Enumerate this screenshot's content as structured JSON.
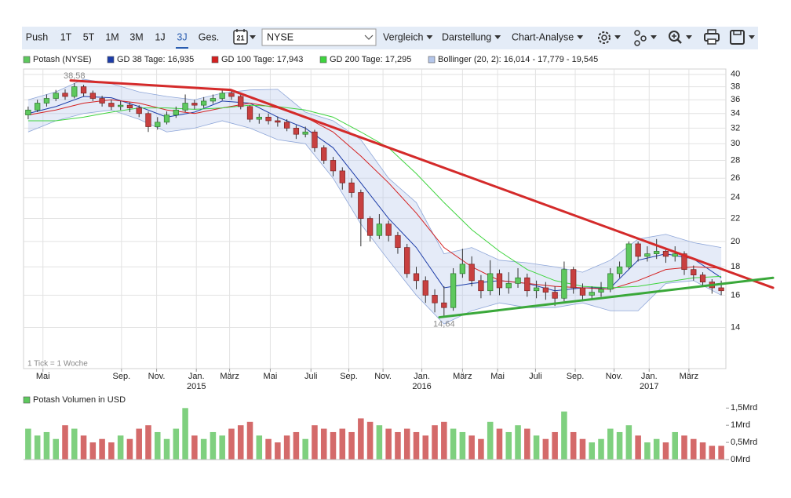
{
  "toolbar": {
    "ranges": [
      "Push",
      "1T",
      "5T",
      "1M",
      "3M",
      "1J",
      "3J",
      "Ges."
    ],
    "selected_index": 6,
    "calendar_day": "21",
    "exchange": "NYSE",
    "menus": [
      "Vergleich",
      "Darstellung",
      "Chart-Analyse"
    ]
  },
  "chart_data": [
    {
      "type": "candlestick",
      "name": "Potash (NYSE)",
      "up_color": "#5ec85e",
      "down_color": "#c84040",
      "footnote": "1 Tick = 1 Woche",
      "xlim": [
        -0.5,
        75.5
      ],
      "ylim": [
        11.8,
        40.9
      ],
      "log_scale": true,
      "grid": true,
      "yticks": [
        14,
        16,
        18,
        20,
        22,
        24,
        26,
        28,
        30,
        32,
        34,
        36,
        38,
        40
      ],
      "xticks": [
        {
          "value": 1.6,
          "label": "Mai"
        },
        {
          "value": 10.1,
          "label": "Sep."
        },
        {
          "value": 13.9,
          "label": "Nov."
        },
        {
          "value": 18.2,
          "label": "Jan."
        },
        {
          "value": 21.8,
          "label": "März"
        },
        {
          "value": 26.2,
          "label": "Mai"
        },
        {
          "value": 30.6,
          "label": "Juli"
        },
        {
          "value": 34.7,
          "label": "Sep."
        },
        {
          "value": 38.4,
          "label": "Nov."
        },
        {
          "value": 42.6,
          "label": "Jan."
        },
        {
          "value": 47.0,
          "label": "März"
        },
        {
          "value": 50.8,
          "label": "Mai"
        },
        {
          "value": 54.9,
          "label": "Juli"
        },
        {
          "value": 59.2,
          "label": "Sep."
        },
        {
          "value": 63.4,
          "label": "Nov."
        },
        {
          "value": 67.2,
          "label": "Jan."
        },
        {
          "value": 71.5,
          "label": "März"
        }
      ],
      "x_year_labels": [
        {
          "value": 18.2,
          "label": "2015"
        },
        {
          "value": 42.6,
          "label": "2016"
        },
        {
          "value": 67.2,
          "label": "2017"
        }
      ],
      "open": [
        33.8,
        34.5,
        35.5,
        36.2,
        37.0,
        36.5,
        38.0,
        37.0,
        36.2,
        35.5,
        35.0,
        35.2,
        34.8,
        34.0,
        32.2,
        32.8,
        33.8,
        34.5,
        35.5,
        35.2,
        35.8,
        36.2,
        37.0,
        36.5,
        35.0,
        33.2,
        33.5,
        33.0,
        32.8,
        32.0,
        31.2,
        31.5,
        29.5,
        28.0,
        26.8,
        25.5,
        24.5,
        22.0,
        20.5,
        21.5,
        20.5,
        19.5,
        17.5,
        17.0,
        16.0,
        15.5,
        15.2,
        17.5,
        18.2,
        17.0,
        16.3,
        17.5,
        16.5,
        16.8,
        17.2,
        16.3,
        16.5,
        16.2,
        15.8,
        17.8,
        16.5,
        16.0,
        16.2,
        16.4,
        17.5,
        18.0,
        19.8,
        18.8,
        19.0,
        19.2,
        18.8,
        19.0,
        17.8,
        17.4,
        16.9,
        16.5
      ],
      "high": [
        35.0,
        36.0,
        36.8,
        37.5,
        37.6,
        38.58,
        38.3,
        37.4,
        36.6,
        36.0,
        35.8,
        35.6,
        35.2,
        34.3,
        33.5,
        34.3,
        35.0,
        36.8,
        36.0,
        36.4,
        36.8,
        37.6,
        37.5,
        36.8,
        35.2,
        34.0,
        34.0,
        33.6,
        33.2,
        32.4,
        32.2,
        31.8,
        29.8,
        28.4,
        27.2,
        26.0,
        24.8,
        22.2,
        22.4,
        21.8,
        20.8,
        19.8,
        18.0,
        17.3,
        16.4,
        16.6,
        17.9,
        19.4,
        18.8,
        17.4,
        18.5,
        17.8,
        17.6,
        17.9,
        17.5,
        17.0,
        16.9,
        16.6,
        18.4,
        18.0,
        16.8,
        16.6,
        16.9,
        17.9,
        18.4,
        20.0,
        20.0,
        19.6,
        20.2,
        19.5,
        19.6,
        19.2,
        18.1,
        17.6,
        17.1,
        17.0
      ],
      "low": [
        33.2,
        34.2,
        35.0,
        35.8,
        36.0,
        36.2,
        36.5,
        35.8,
        35.0,
        34.5,
        34.5,
        34.2,
        33.5,
        31.5,
        31.8,
        32.5,
        33.4,
        34.2,
        34.6,
        34.8,
        35.4,
        35.9,
        36.0,
        34.6,
        32.8,
        32.6,
        32.5,
        32.2,
        31.6,
        30.6,
        30.8,
        29.0,
        27.6,
        26.2,
        24.8,
        24.0,
        19.6,
        20.0,
        20.2,
        20.0,
        19.0,
        17.2,
        16.4,
        15.5,
        14.9,
        14.64,
        15.0,
        17.2,
        16.6,
        15.8,
        16.0,
        16.0,
        16.1,
        16.5,
        15.9,
        15.8,
        15.7,
        15.3,
        15.6,
        16.1,
        15.6,
        15.7,
        15.9,
        16.2,
        17.2,
        17.8,
        18.4,
        18.4,
        18.6,
        18.3,
        18.4,
        17.4,
        17.0,
        16.6,
        16.1,
        16.0
      ],
      "close": [
        34.5,
        35.5,
        36.2,
        37.0,
        36.5,
        38.0,
        37.0,
        36.2,
        35.5,
        35.0,
        35.2,
        34.8,
        34.0,
        32.2,
        32.8,
        33.8,
        34.5,
        35.5,
        35.2,
        35.8,
        36.2,
        37.0,
        36.5,
        35.0,
        33.2,
        33.5,
        33.0,
        32.8,
        32.0,
        31.2,
        31.5,
        29.5,
        28.0,
        26.8,
        25.5,
        24.5,
        22.0,
        20.5,
        21.5,
        20.5,
        19.5,
        17.5,
        17.0,
        16.0,
        15.5,
        15.2,
        17.5,
        18.2,
        17.0,
        16.3,
        17.5,
        16.5,
        16.8,
        17.2,
        16.3,
        16.5,
        16.2,
        15.8,
        17.8,
        16.5,
        16.0,
        16.2,
        16.4,
        17.5,
        18.0,
        19.8,
        18.8,
        19.0,
        19.2,
        18.8,
        19.0,
        17.8,
        17.4,
        16.9,
        16.5,
        16.3
      ],
      "line_x": [
        0,
        3,
        6,
        9,
        12,
        15,
        18,
        21,
        24,
        27,
        30,
        33,
        36,
        39,
        42,
        45,
        48,
        51,
        54,
        57,
        60,
        63,
        66,
        69,
        72,
        75
      ],
      "series": [
        {
          "name": "GD 38 Tage: 16,935",
          "color": "#1c3ca8",
          "values": [
            34.0,
            35.0,
            36.5,
            36.3,
            35.0,
            33.5,
            34.2,
            35.8,
            35.5,
            33.5,
            32.0,
            29.5,
            25.5,
            22.0,
            19.5,
            16.5,
            16.8,
            17.0,
            16.8,
            16.3,
            16.5,
            16.5,
            18.5,
            19.0,
            18.6,
            17.2
          ]
        },
        {
          "name": "GD 100 Tage: 17,943",
          "color": "#d42020",
          "values": [
            33.8,
            34.5,
            35.5,
            36.0,
            35.5,
            34.5,
            34.0,
            34.8,
            35.5,
            34.8,
            33.5,
            31.5,
            28.5,
            25.5,
            22.5,
            19.5,
            18.0,
            17.0,
            16.8,
            16.6,
            16.5,
            16.4,
            17.0,
            17.8,
            18.0,
            17.9
          ]
        },
        {
          "name": "GD 200 Tage: 17,295",
          "color": "#3ed43e",
          "values": [
            33.0,
            33.0,
            33.5,
            34.2,
            34.8,
            34.8,
            34.6,
            34.8,
            35.2,
            35.0,
            34.5,
            33.5,
            31.5,
            29.5,
            26.5,
            23.5,
            21.0,
            19.2,
            17.8,
            17.0,
            16.6,
            16.5,
            16.6,
            16.9,
            17.2,
            17.3
          ]
        }
      ],
      "band": {
        "name": "Bollinger (20, 2): 16,014 - 17,779 - 19,545",
        "color": "#b4c6ea",
        "upper": [
          36.0,
          37.2,
          39.2,
          38.5,
          37.2,
          36.5,
          36.0,
          37.0,
          37.5,
          37.6,
          34.2,
          33.0,
          30.5,
          26.0,
          23.5,
          19.0,
          19.5,
          18.5,
          18.3,
          18.0,
          17.6,
          18.5,
          20.2,
          20.6,
          19.9,
          19.5
        ],
        "lower": [
          31.5,
          33.0,
          34.0,
          34.5,
          33.2,
          31.5,
          32.0,
          33.0,
          32.0,
          30.5,
          30.0,
          26.0,
          21.5,
          18.5,
          16.0,
          14.2,
          15.0,
          15.5,
          15.2,
          15.2,
          15.5,
          15.0,
          15.0,
          16.8,
          17.0,
          16.0
        ]
      },
      "trendlines": [
        {
          "color": "#d42a2a",
          "x": [
            4.6,
            21.9,
            80.6
          ],
          "values": [
            39.0,
            37.5,
            16.5
          ]
        },
        {
          "color": "#3aa83a",
          "x": [
            44.5,
            80.6
          ],
          "values": [
            14.6,
            17.2
          ]
        }
      ],
      "annotations": [
        {
          "text": "38,58",
          "x": 5,
          "y": 38.58,
          "position": "above"
        },
        {
          "text": "14,64",
          "x": 45,
          "y": 14.64,
          "position": "below"
        }
      ]
    },
    {
      "type": "bar",
      "title": "Potash Volumen in USD",
      "title_color": "#5ec85e",
      "up_color": "#7fd07f",
      "down_color": "#d46a6a",
      "ylim": [
        0,
        1.53
      ],
      "yticks": [
        {
          "value": 0,
          "label": "0Mrd"
        },
        {
          "value": 0.5,
          "label": "0,5Mrd"
        },
        {
          "value": 1,
          "label": "1Mrd"
        },
        {
          "value": 1.5,
          "label": "1,5Mrd"
        }
      ],
      "values": [
        0.9,
        0.7,
        0.8,
        0.6,
        1.0,
        0.9,
        0.7,
        0.5,
        0.6,
        0.5,
        0.7,
        0.6,
        0.9,
        1.0,
        0.8,
        0.6,
        0.9,
        1.5,
        0.7,
        0.6,
        0.8,
        0.7,
        0.9,
        1.0,
        1.1,
        0.7,
        0.6,
        0.5,
        0.7,
        0.8,
        0.6,
        1.0,
        0.9,
        0.8,
        0.9,
        0.8,
        1.2,
        1.1,
        1.0,
        0.9,
        0.8,
        0.9,
        0.8,
        0.7,
        1.0,
        1.1,
        0.9,
        0.8,
        0.7,
        0.6,
        1.1,
        0.9,
        0.8,
        1.0,
        0.9,
        0.7,
        0.6,
        0.8,
        1.4,
        0.8,
        0.6,
        0.5,
        0.6,
        0.9,
        0.8,
        1.0,
        0.7,
        0.5,
        0.6,
        0.5,
        0.8,
        0.7,
        0.6,
        0.5,
        0.4,
        0.4
      ]
    }
  ]
}
